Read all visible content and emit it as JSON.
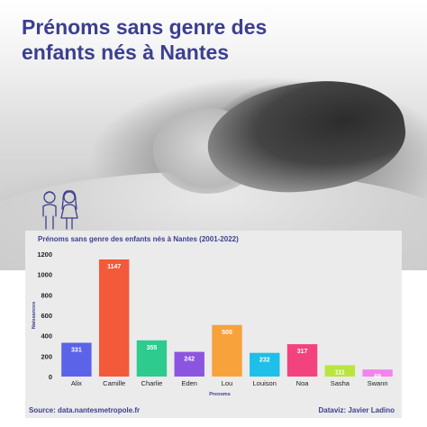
{
  "header": {
    "title_line1": "Prénoms sans genre des",
    "title_line2": "enfants nés à Nantes"
  },
  "icons": {
    "kids": "boy-girl-icon"
  },
  "colors": {
    "title": "#3c3f8f",
    "panel": "#ebebeb"
  },
  "chart_data": {
    "type": "bar",
    "title": "Prénoms sans genre des enfants nés à Nantes (2001-2022)",
    "xlabel": "Prenoms",
    "ylabel": "Naissances",
    "ylim": [
      0,
      1200
    ],
    "yticks": [
      0,
      200,
      400,
      600,
      800,
      1000,
      1200
    ],
    "grid": false,
    "categories": [
      "Alix",
      "Camille",
      "Charlie",
      "Eden",
      "Lou",
      "Louison",
      "Noa",
      "Sasha",
      "Swann"
    ],
    "values": [
      331,
      1147,
      355,
      242,
      505,
      232,
      317,
      111,
      69
    ],
    "colors": [
      "#5b63e8",
      "#f25a3a",
      "#2ecb8e",
      "#8c55e0",
      "#f8a23b",
      "#1ebfe8",
      "#f2437e",
      "#b8e63e",
      "#f483ee"
    ]
  },
  "footer": {
    "source": "Source: data.nantesmetropole.fr",
    "credit": "Dataviz: Javier Ladino"
  }
}
